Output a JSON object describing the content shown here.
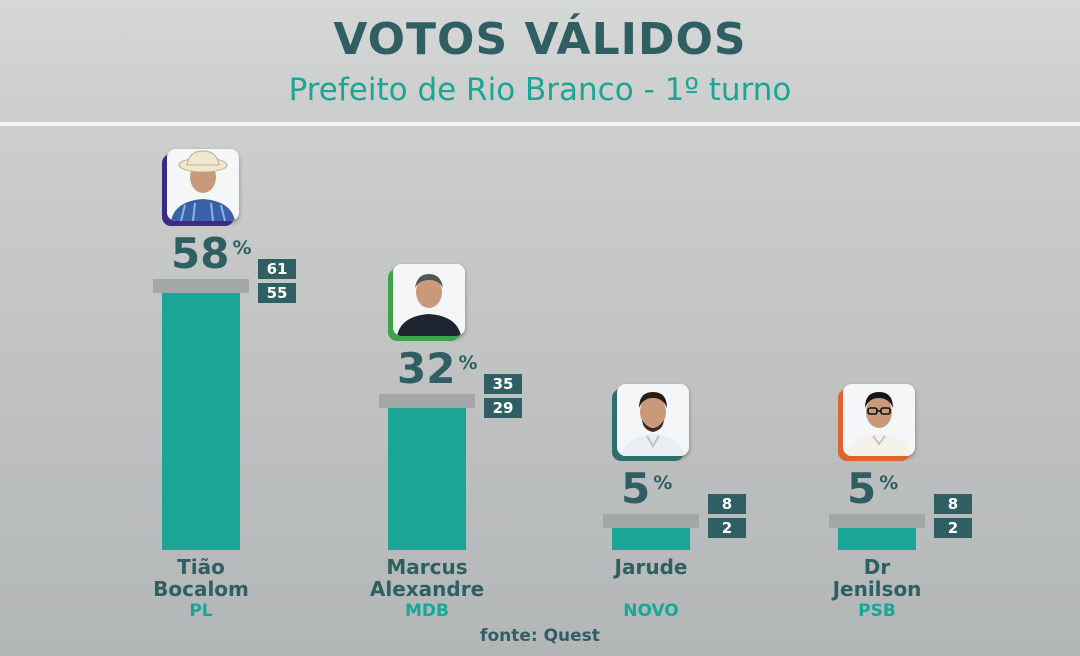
{
  "header": {
    "title": "VOTOS VÁLIDOS",
    "subtitle": "Prefeito de Rio Branco - 1º turno"
  },
  "source": "fonte: Quest",
  "colors": {
    "bar": "#1aa596",
    "shadow": "#a4a7a7",
    "dark": "#2f5f62",
    "party": "#14a898"
  },
  "chart_data": {
    "type": "bar",
    "title": "VOTOS VÁLIDOS",
    "subtitle": "Prefeito de Rio Branco - 1º turno",
    "categories": [
      "Tião Bocalom",
      "Marcus Alexandre",
      "Jarude",
      "Dr Jenilson"
    ],
    "values": [
      58,
      32,
      5,
      5
    ],
    "unit": "%",
    "ylim": [
      0,
      60
    ],
    "grid": false,
    "candidates": [
      {
        "name_line1": "Tião",
        "name_line2": "Bocalom",
        "party": "PL",
        "value": 58,
        "upper": 61,
        "lower": 55,
        "photo_accent": "#3c2a86",
        "photo_icon": "man-with-hat-photo-icon"
      },
      {
        "name_line1": "Marcus",
        "name_line2": "Alexandre",
        "party": "MDB",
        "value": 32,
        "upper": 35,
        "lower": 29,
        "photo_accent": "#3fa24a",
        "photo_icon": "man-dark-shirt-photo-icon"
      },
      {
        "name_line1": "Jarude",
        "name_line2": "",
        "party": "NOVO",
        "value": 5,
        "upper": 8,
        "lower": 2,
        "photo_accent": "#2f6e6e",
        "photo_icon": "man-beard-photo-icon"
      },
      {
        "name_line1": "Dr",
        "name_line2": "Jenilson",
        "party": "PSB",
        "value": 5,
        "upper": 8,
        "lower": 2,
        "photo_accent": "#e0642a",
        "photo_icon": "man-glasses-photo-icon"
      }
    ]
  }
}
